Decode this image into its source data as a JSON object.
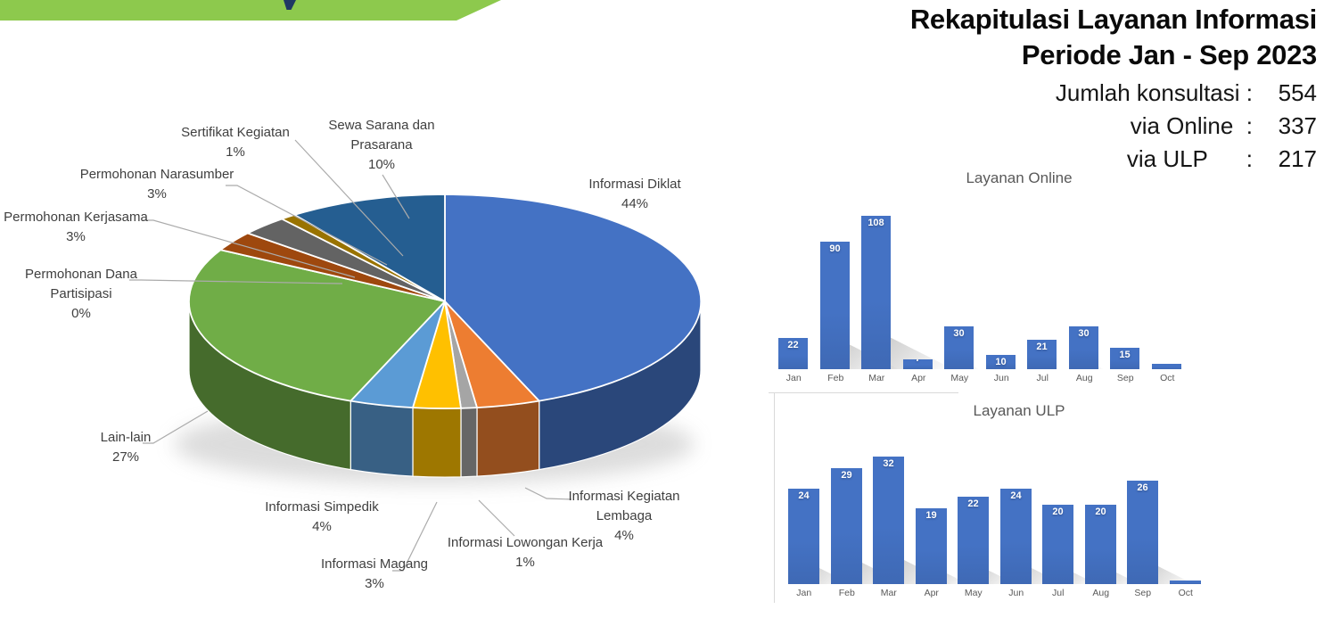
{
  "banner": {
    "color": "#8DC94D",
    "fragment_color": "#1F3864"
  },
  "header": {
    "title_line1": "Rekapitulasi Layanan Informasi",
    "title_line2": "Periode Jan - Sep 2023",
    "summary": [
      {
        "label": "Jumlah konsultasi :",
        "value": "554"
      },
      {
        "label": "via Online  :",
        "value": "337"
      },
      {
        "label": "via ULP      :",
        "value": "217"
      }
    ]
  },
  "chart_data": [
    {
      "type": "pie",
      "title": "",
      "legend": "none",
      "slices": [
        {
          "label": "Informasi Diklat",
          "label_lines": [
            "Informasi Diklat"
          ],
          "pct": "44%",
          "value": 44,
          "color": "#4472C4"
        },
        {
          "label": "Informasi Kegiatan Lembaga",
          "label_lines": [
            "Informasi Kegiatan",
            "Lembaga"
          ],
          "pct": "4%",
          "value": 4,
          "color": "#ED7D31"
        },
        {
          "label": "Informasi Lowongan Kerja",
          "label_lines": [
            "Informasi Lowongan Kerja"
          ],
          "pct": "1%",
          "value": 1,
          "color": "#A5A5A5"
        },
        {
          "label": "Informasi Magang",
          "label_lines": [
            "Informasi Magang"
          ],
          "pct": "3%",
          "value": 3,
          "color": "#FFC000"
        },
        {
          "label": "Informasi Simpedik",
          "label_lines": [
            "Informasi Simpedik"
          ],
          "pct": "4%",
          "value": 4,
          "color": "#5B9BD5"
        },
        {
          "label": "Lain-lain",
          "label_lines": [
            "Lain-lain"
          ],
          "pct": "27%",
          "value": 27,
          "color": "#70AD47"
        },
        {
          "label": "Permohonan Dana Partisipasi",
          "label_lines": [
            "Permohonan Dana",
            "Partisipasi"
          ],
          "pct": "0%",
          "value": 0,
          "color": "#264478"
        },
        {
          "label": "Permohonan Kerjasama",
          "label_lines": [
            "Permohonan Kerjasama"
          ],
          "pct": "3%",
          "value": 3,
          "color": "#9E480E"
        },
        {
          "label": "Permohonan Narasumber",
          "label_lines": [
            "Permohonan Narasumber"
          ],
          "pct": "3%",
          "value": 3,
          "color": "#636363"
        },
        {
          "label": "Sertifikat Kegiatan",
          "label_lines": [
            "Sertifikat Kegiatan"
          ],
          "pct": "1%",
          "value": 1,
          "color": "#997300"
        },
        {
          "label": "Sewa Sarana dan Prasarana",
          "label_lines": [
            "Sewa Sarana dan",
            "Prasarana"
          ],
          "pct": "10%",
          "value": 10,
          "color": "#255E91"
        }
      ]
    },
    {
      "type": "bar",
      "title": "Layanan Online",
      "categories": [
        "Jan",
        "Feb",
        "Mar",
        "Apr",
        "May",
        "Jun",
        "Jul",
        "Aug",
        "Sep",
        "Oct"
      ],
      "values": [
        22,
        90,
        108,
        7,
        30,
        10,
        21,
        30,
        15,
        4
      ],
      "bar_color": "#4472C4",
      "xlabel": "",
      "ylabel": "",
      "grid": "off",
      "axis_lines": "none"
    },
    {
      "type": "bar",
      "title": "Layanan ULP",
      "categories": [
        "Jan",
        "Feb",
        "Mar",
        "Apr",
        "May",
        "Jun",
        "Jul",
        "Aug",
        "Sep",
        "Oct"
      ],
      "values": [
        24,
        29,
        32,
        19,
        22,
        24,
        20,
        20,
        26,
        1
      ],
      "bar_color": "#4472C4",
      "xlabel": "",
      "ylabel": "",
      "grid": "off",
      "axis_lines": "none"
    }
  ]
}
